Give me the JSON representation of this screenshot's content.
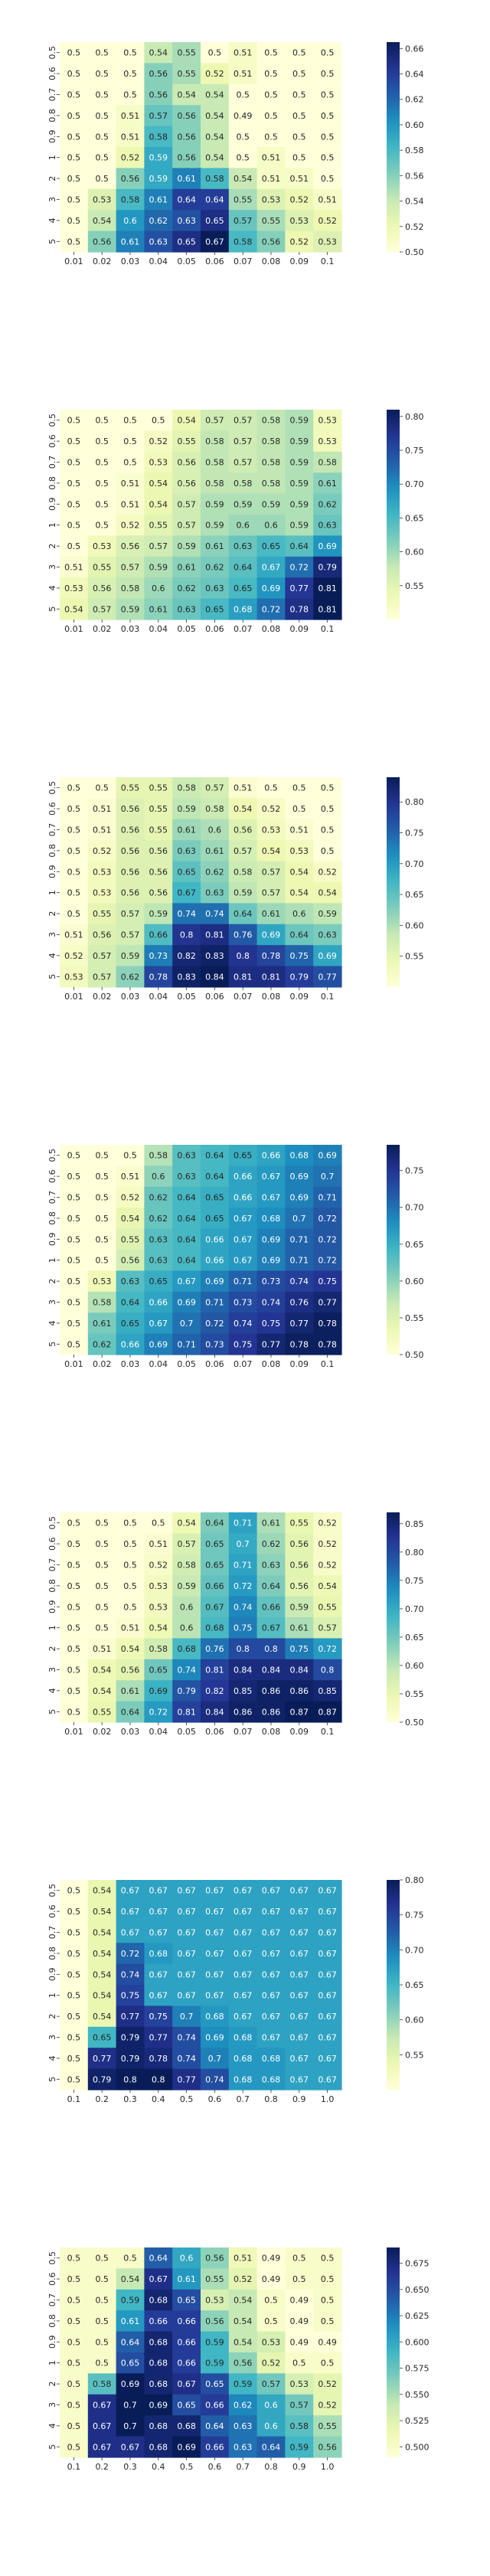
{
  "chart_data": [
    {
      "type": "heatmap",
      "x": [
        "0.01",
        "0.02",
        "0.03",
        "0.04",
        "0.05",
        "0.06",
        "0.07",
        "0.08",
        "0.09",
        "0.1"
      ],
      "y": [
        "0.5",
        "0.6",
        "0.7",
        "0.8",
        "0.9",
        "1",
        "2",
        "3",
        "4",
        "5"
      ],
      "values": [
        [
          0.5,
          0.5,
          0.5,
          0.54,
          0.55,
          0.5,
          0.51,
          0.5,
          0.5,
          0.5
        ],
        [
          0.5,
          0.5,
          0.5,
          0.56,
          0.55,
          0.52,
          0.51,
          0.5,
          0.5,
          0.5
        ],
        [
          0.5,
          0.5,
          0.5,
          0.56,
          0.54,
          0.54,
          0.5,
          0.5,
          0.5,
          0.5
        ],
        [
          0.5,
          0.5,
          0.51,
          0.57,
          0.56,
          0.54,
          0.49,
          0.5,
          0.5,
          0.5
        ],
        [
          0.5,
          0.5,
          0.51,
          0.58,
          0.56,
          0.54,
          0.5,
          0.5,
          0.5,
          0.5
        ],
        [
          0.5,
          0.5,
          0.52,
          0.59,
          0.56,
          0.54,
          0.5,
          0.51,
          0.5,
          0.5
        ],
        [
          0.5,
          0.5,
          0.56,
          0.59,
          0.61,
          0.58,
          0.54,
          0.51,
          0.51,
          0.5
        ],
        [
          0.5,
          0.53,
          0.58,
          0.61,
          0.64,
          0.64,
          0.55,
          0.53,
          0.52,
          0.51
        ],
        [
          0.5,
          0.54,
          0.6,
          0.62,
          0.63,
          0.65,
          0.57,
          0.55,
          0.53,
          0.52
        ],
        [
          0.5,
          0.56,
          0.61,
          0.63,
          0.65,
          0.67,
          0.58,
          0.56,
          0.52,
          0.53
        ]
      ],
      "colorbar": {
        "range": [
          0.5,
          0.665
        ],
        "ticks": [
          0.5,
          0.52,
          0.54,
          0.56,
          0.58,
          0.6,
          0.62,
          0.64,
          0.66
        ]
      },
      "colormap": "YlGnBu"
    },
    {
      "type": "heatmap",
      "x": [
        "0.01",
        "0.02",
        "0.03",
        "0.04",
        "0.05",
        "0.06",
        "0.07",
        "0.08",
        "0.09",
        "0.1"
      ],
      "y": [
        "0.5",
        "0.6",
        "0.7",
        "0.8",
        "0.9",
        "1",
        "2",
        "3",
        "4",
        "5"
      ],
      "values": [
        [
          0.5,
          0.5,
          0.5,
          0.5,
          0.54,
          0.57,
          0.57,
          0.58,
          0.59,
          0.53
        ],
        [
          0.5,
          0.5,
          0.5,
          0.52,
          0.55,
          0.58,
          0.57,
          0.58,
          0.59,
          0.53
        ],
        [
          0.5,
          0.5,
          0.5,
          0.53,
          0.56,
          0.58,
          0.57,
          0.58,
          0.59,
          0.58
        ],
        [
          0.5,
          0.5,
          0.51,
          0.54,
          0.56,
          0.58,
          0.58,
          0.58,
          0.59,
          0.61
        ],
        [
          0.5,
          0.5,
          0.51,
          0.54,
          0.57,
          0.59,
          0.59,
          0.59,
          0.59,
          0.62
        ],
        [
          0.5,
          0.5,
          0.52,
          0.55,
          0.57,
          0.59,
          0.6,
          0.6,
          0.59,
          0.63
        ],
        [
          0.5,
          0.53,
          0.56,
          0.57,
          0.59,
          0.61,
          0.63,
          0.65,
          0.64,
          0.69
        ],
        [
          0.51,
          0.55,
          0.57,
          0.59,
          0.61,
          0.62,
          0.64,
          0.67,
          0.72,
          0.79
        ],
        [
          0.53,
          0.56,
          0.58,
          0.6,
          0.62,
          0.63,
          0.65,
          0.69,
          0.77,
          0.81
        ],
        [
          0.54,
          0.57,
          0.59,
          0.61,
          0.63,
          0.65,
          0.68,
          0.72,
          0.78,
          0.81
        ]
      ],
      "colorbar": {
        "range": [
          0.5,
          0.81
        ],
        "ticks": [
          0.55,
          0.6,
          0.65,
          0.7,
          0.75,
          0.8
        ]
      },
      "colormap": "YlGnBu"
    },
    {
      "type": "heatmap",
      "x": [
        "0.01",
        "0.02",
        "0.03",
        "0.04",
        "0.05",
        "0.06",
        "0.07",
        "0.08",
        "0.09",
        "0.1"
      ],
      "y": [
        "0.5",
        "0.6",
        "0.7",
        "0.8",
        "0.9",
        "1",
        "2",
        "3",
        "4",
        "5"
      ],
      "values": [
        [
          0.5,
          0.5,
          0.55,
          0.55,
          0.58,
          0.57,
          0.51,
          0.5,
          0.5,
          0.5
        ],
        [
          0.5,
          0.51,
          0.56,
          0.55,
          0.59,
          0.58,
          0.54,
          0.52,
          0.5,
          0.5
        ],
        [
          0.5,
          0.51,
          0.56,
          0.55,
          0.61,
          0.6,
          0.56,
          0.53,
          0.51,
          0.5
        ],
        [
          0.5,
          0.52,
          0.56,
          0.56,
          0.63,
          0.61,
          0.57,
          0.54,
          0.53,
          0.5
        ],
        [
          0.5,
          0.53,
          0.56,
          0.56,
          0.65,
          0.62,
          0.58,
          0.57,
          0.54,
          0.52
        ],
        [
          0.5,
          0.53,
          0.56,
          0.56,
          0.67,
          0.63,
          0.59,
          0.57,
          0.54,
          0.54
        ],
        [
          0.5,
          0.55,
          0.57,
          0.59,
          0.74,
          0.74,
          0.64,
          0.61,
          0.6,
          0.59
        ],
        [
          0.51,
          0.56,
          0.57,
          0.66,
          0.8,
          0.81,
          0.76,
          0.69,
          0.64,
          0.63
        ],
        [
          0.52,
          0.57,
          0.59,
          0.73,
          0.82,
          0.83,
          0.8,
          0.78,
          0.75,
          0.69
        ],
        [
          0.53,
          0.57,
          0.62,
          0.78,
          0.83,
          0.84,
          0.81,
          0.81,
          0.79,
          0.77
        ]
      ],
      "colorbar": {
        "range": [
          0.5,
          0.84
        ],
        "ticks": [
          0.55,
          0.6,
          0.65,
          0.7,
          0.75,
          0.8
        ]
      },
      "colormap": "YlGnBu"
    },
    {
      "type": "heatmap",
      "x": [
        "0.01",
        "0.02",
        "0.03",
        "0.04",
        "0.05",
        "0.06",
        "0.07",
        "0.08",
        "0.09",
        "0.1"
      ],
      "y": [
        "0.5",
        "0.6",
        "0.7",
        "0.8",
        "0.9",
        "1",
        "2",
        "3",
        "4",
        "5"
      ],
      "values": [
        [
          0.5,
          0.5,
          0.5,
          0.58,
          0.63,
          0.64,
          0.65,
          0.66,
          0.68,
          0.69
        ],
        [
          0.5,
          0.5,
          0.51,
          0.6,
          0.63,
          0.64,
          0.66,
          0.67,
          0.69,
          0.7
        ],
        [
          0.5,
          0.5,
          0.52,
          0.62,
          0.64,
          0.65,
          0.66,
          0.67,
          0.69,
          0.71
        ],
        [
          0.5,
          0.5,
          0.54,
          0.62,
          0.64,
          0.65,
          0.67,
          0.68,
          0.7,
          0.72
        ],
        [
          0.5,
          0.5,
          0.55,
          0.63,
          0.64,
          0.66,
          0.67,
          0.69,
          0.71,
          0.72
        ],
        [
          0.5,
          0.5,
          0.56,
          0.63,
          0.64,
          0.66,
          0.67,
          0.69,
          0.71,
          0.72
        ],
        [
          0.5,
          0.53,
          0.63,
          0.65,
          0.67,
          0.69,
          0.71,
          0.73,
          0.74,
          0.75
        ],
        [
          0.5,
          0.58,
          0.64,
          0.66,
          0.69,
          0.71,
          0.73,
          0.74,
          0.76,
          0.77
        ],
        [
          0.5,
          0.61,
          0.65,
          0.67,
          0.7,
          0.72,
          0.74,
          0.75,
          0.77,
          0.78
        ],
        [
          0.5,
          0.62,
          0.66,
          0.69,
          0.71,
          0.73,
          0.75,
          0.77,
          0.78,
          0.78
        ]
      ],
      "colorbar": {
        "range": [
          0.5,
          0.785
        ],
        "ticks": [
          0.5,
          0.55,
          0.6,
          0.65,
          0.7,
          0.75
        ]
      },
      "colormap": "YlGnBu"
    },
    {
      "type": "heatmap",
      "x": [
        "0.01",
        "0.02",
        "0.03",
        "0.04",
        "0.05",
        "0.06",
        "0.07",
        "0.08",
        "0.09",
        "0.1"
      ],
      "y": [
        "0.5",
        "0.6",
        "0.7",
        "0.8",
        "0.9",
        "1",
        "2",
        "3",
        "4",
        "5"
      ],
      "values": [
        [
          0.5,
          0.5,
          0.5,
          0.5,
          0.54,
          0.64,
          0.71,
          0.61,
          0.55,
          0.52
        ],
        [
          0.5,
          0.5,
          0.5,
          0.51,
          0.57,
          0.65,
          0.7,
          0.62,
          0.56,
          0.52
        ],
        [
          0.5,
          0.5,
          0.5,
          0.52,
          0.58,
          0.65,
          0.71,
          0.63,
          0.56,
          0.52
        ],
        [
          0.5,
          0.5,
          0.5,
          0.53,
          0.59,
          0.66,
          0.72,
          0.64,
          0.56,
          0.54
        ],
        [
          0.5,
          0.5,
          0.5,
          0.53,
          0.6,
          0.67,
          0.74,
          0.66,
          0.59,
          0.55
        ],
        [
          0.5,
          0.5,
          0.51,
          0.54,
          0.6,
          0.68,
          0.75,
          0.67,
          0.61,
          0.57
        ],
        [
          0.5,
          0.51,
          0.54,
          0.58,
          0.68,
          0.76,
          0.8,
          0.8,
          0.75,
          0.72
        ],
        [
          0.5,
          0.54,
          0.56,
          0.65,
          0.74,
          0.81,
          0.84,
          0.84,
          0.84,
          0.8
        ],
        [
          0.5,
          0.54,
          0.61,
          0.69,
          0.79,
          0.82,
          0.85,
          0.86,
          0.86,
          0.85
        ],
        [
          0.5,
          0.55,
          0.64,
          0.72,
          0.81,
          0.84,
          0.86,
          0.86,
          0.87,
          0.87
        ]
      ],
      "colorbar": {
        "range": [
          0.5,
          0.87
        ],
        "ticks": [
          0.5,
          0.55,
          0.6,
          0.65,
          0.7,
          0.75,
          0.8,
          0.85
        ]
      },
      "colormap": "YlGnBu"
    },
    {
      "type": "heatmap",
      "x": [
        "0.1",
        "0.2",
        "0.3",
        "0.4",
        "0.5",
        "0.6",
        "0.7",
        "0.8",
        "0.9",
        "1.0"
      ],
      "y": [
        "0.5",
        "0.6",
        "0.7",
        "0.8",
        "0.9",
        "1",
        "2",
        "3",
        "4",
        "5"
      ],
      "values": [
        [
          0.5,
          0.54,
          0.67,
          0.67,
          0.67,
          0.67,
          0.67,
          0.67,
          0.67,
          0.67
        ],
        [
          0.5,
          0.54,
          0.67,
          0.67,
          0.67,
          0.67,
          0.67,
          0.67,
          0.67,
          0.67
        ],
        [
          0.5,
          0.54,
          0.67,
          0.67,
          0.67,
          0.67,
          0.67,
          0.67,
          0.67,
          0.67
        ],
        [
          0.5,
          0.54,
          0.72,
          0.68,
          0.67,
          0.67,
          0.67,
          0.67,
          0.67,
          0.67
        ],
        [
          0.5,
          0.54,
          0.74,
          0.67,
          0.67,
          0.67,
          0.67,
          0.67,
          0.67,
          0.67
        ],
        [
          0.5,
          0.54,
          0.75,
          0.67,
          0.67,
          0.67,
          0.67,
          0.67,
          0.67,
          0.67
        ],
        [
          0.5,
          0.54,
          0.77,
          0.75,
          0.7,
          0.68,
          0.67,
          0.67,
          0.67,
          0.67
        ],
        [
          0.5,
          0.65,
          0.79,
          0.77,
          0.74,
          0.69,
          0.68,
          0.67,
          0.67,
          0.67
        ],
        [
          0.5,
          0.77,
          0.79,
          0.78,
          0.74,
          0.7,
          0.68,
          0.68,
          0.67,
          0.67
        ],
        [
          0.5,
          0.79,
          0.8,
          0.8,
          0.77,
          0.74,
          0.68,
          0.68,
          0.67,
          0.67
        ]
      ],
      "colorbar": {
        "range": [
          0.5,
          0.8
        ],
        "ticks": [
          0.55,
          0.6,
          0.65,
          0.7,
          0.75,
          0.8
        ]
      },
      "colormap": "YlGnBu"
    },
    {
      "type": "heatmap",
      "x": [
        "0.1",
        "0.2",
        "0.3",
        "0.4",
        "0.5",
        "0.6",
        "0.7",
        "0.8",
        "0.9",
        "1.0"
      ],
      "y": [
        "0.5",
        "0.6",
        "0.7",
        "0.8",
        "0.9",
        "1",
        "2",
        "3",
        "4",
        "5"
      ],
      "values": [
        [
          0.5,
          0.5,
          0.5,
          0.64,
          0.6,
          0.56,
          0.51,
          0.49,
          0.5,
          0.5
        ],
        [
          0.5,
          0.5,
          0.54,
          0.67,
          0.61,
          0.55,
          0.52,
          0.49,
          0.5,
          0.5
        ],
        [
          0.5,
          0.5,
          0.59,
          0.68,
          0.65,
          0.53,
          0.54,
          0.5,
          0.49,
          0.5
        ],
        [
          0.5,
          0.5,
          0.61,
          0.66,
          0.66,
          0.56,
          0.54,
          0.5,
          0.49,
          0.5
        ],
        [
          0.5,
          0.5,
          0.64,
          0.68,
          0.66,
          0.59,
          0.54,
          0.53,
          0.49,
          0.49
        ],
        [
          0.5,
          0.5,
          0.65,
          0.68,
          0.66,
          0.59,
          0.56,
          0.52,
          0.5,
          0.5
        ],
        [
          0.5,
          0.58,
          0.69,
          0.68,
          0.67,
          0.65,
          0.59,
          0.57,
          0.53,
          0.52
        ],
        [
          0.5,
          0.67,
          0.7,
          0.69,
          0.65,
          0.66,
          0.62,
          0.6,
          0.57,
          0.52
        ],
        [
          0.5,
          0.67,
          0.7,
          0.68,
          0.68,
          0.64,
          0.63,
          0.6,
          0.58,
          0.55
        ],
        [
          0.5,
          0.67,
          0.67,
          0.68,
          0.69,
          0.66,
          0.63,
          0.64,
          0.59,
          0.56
        ]
      ],
      "colorbar": {
        "range": [
          0.49,
          0.69
        ],
        "ticks": [
          0.5,
          0.525,
          0.55,
          0.575,
          0.6,
          0.625,
          0.65,
          0.675
        ]
      },
      "colormap": "YlGnBu"
    }
  ]
}
